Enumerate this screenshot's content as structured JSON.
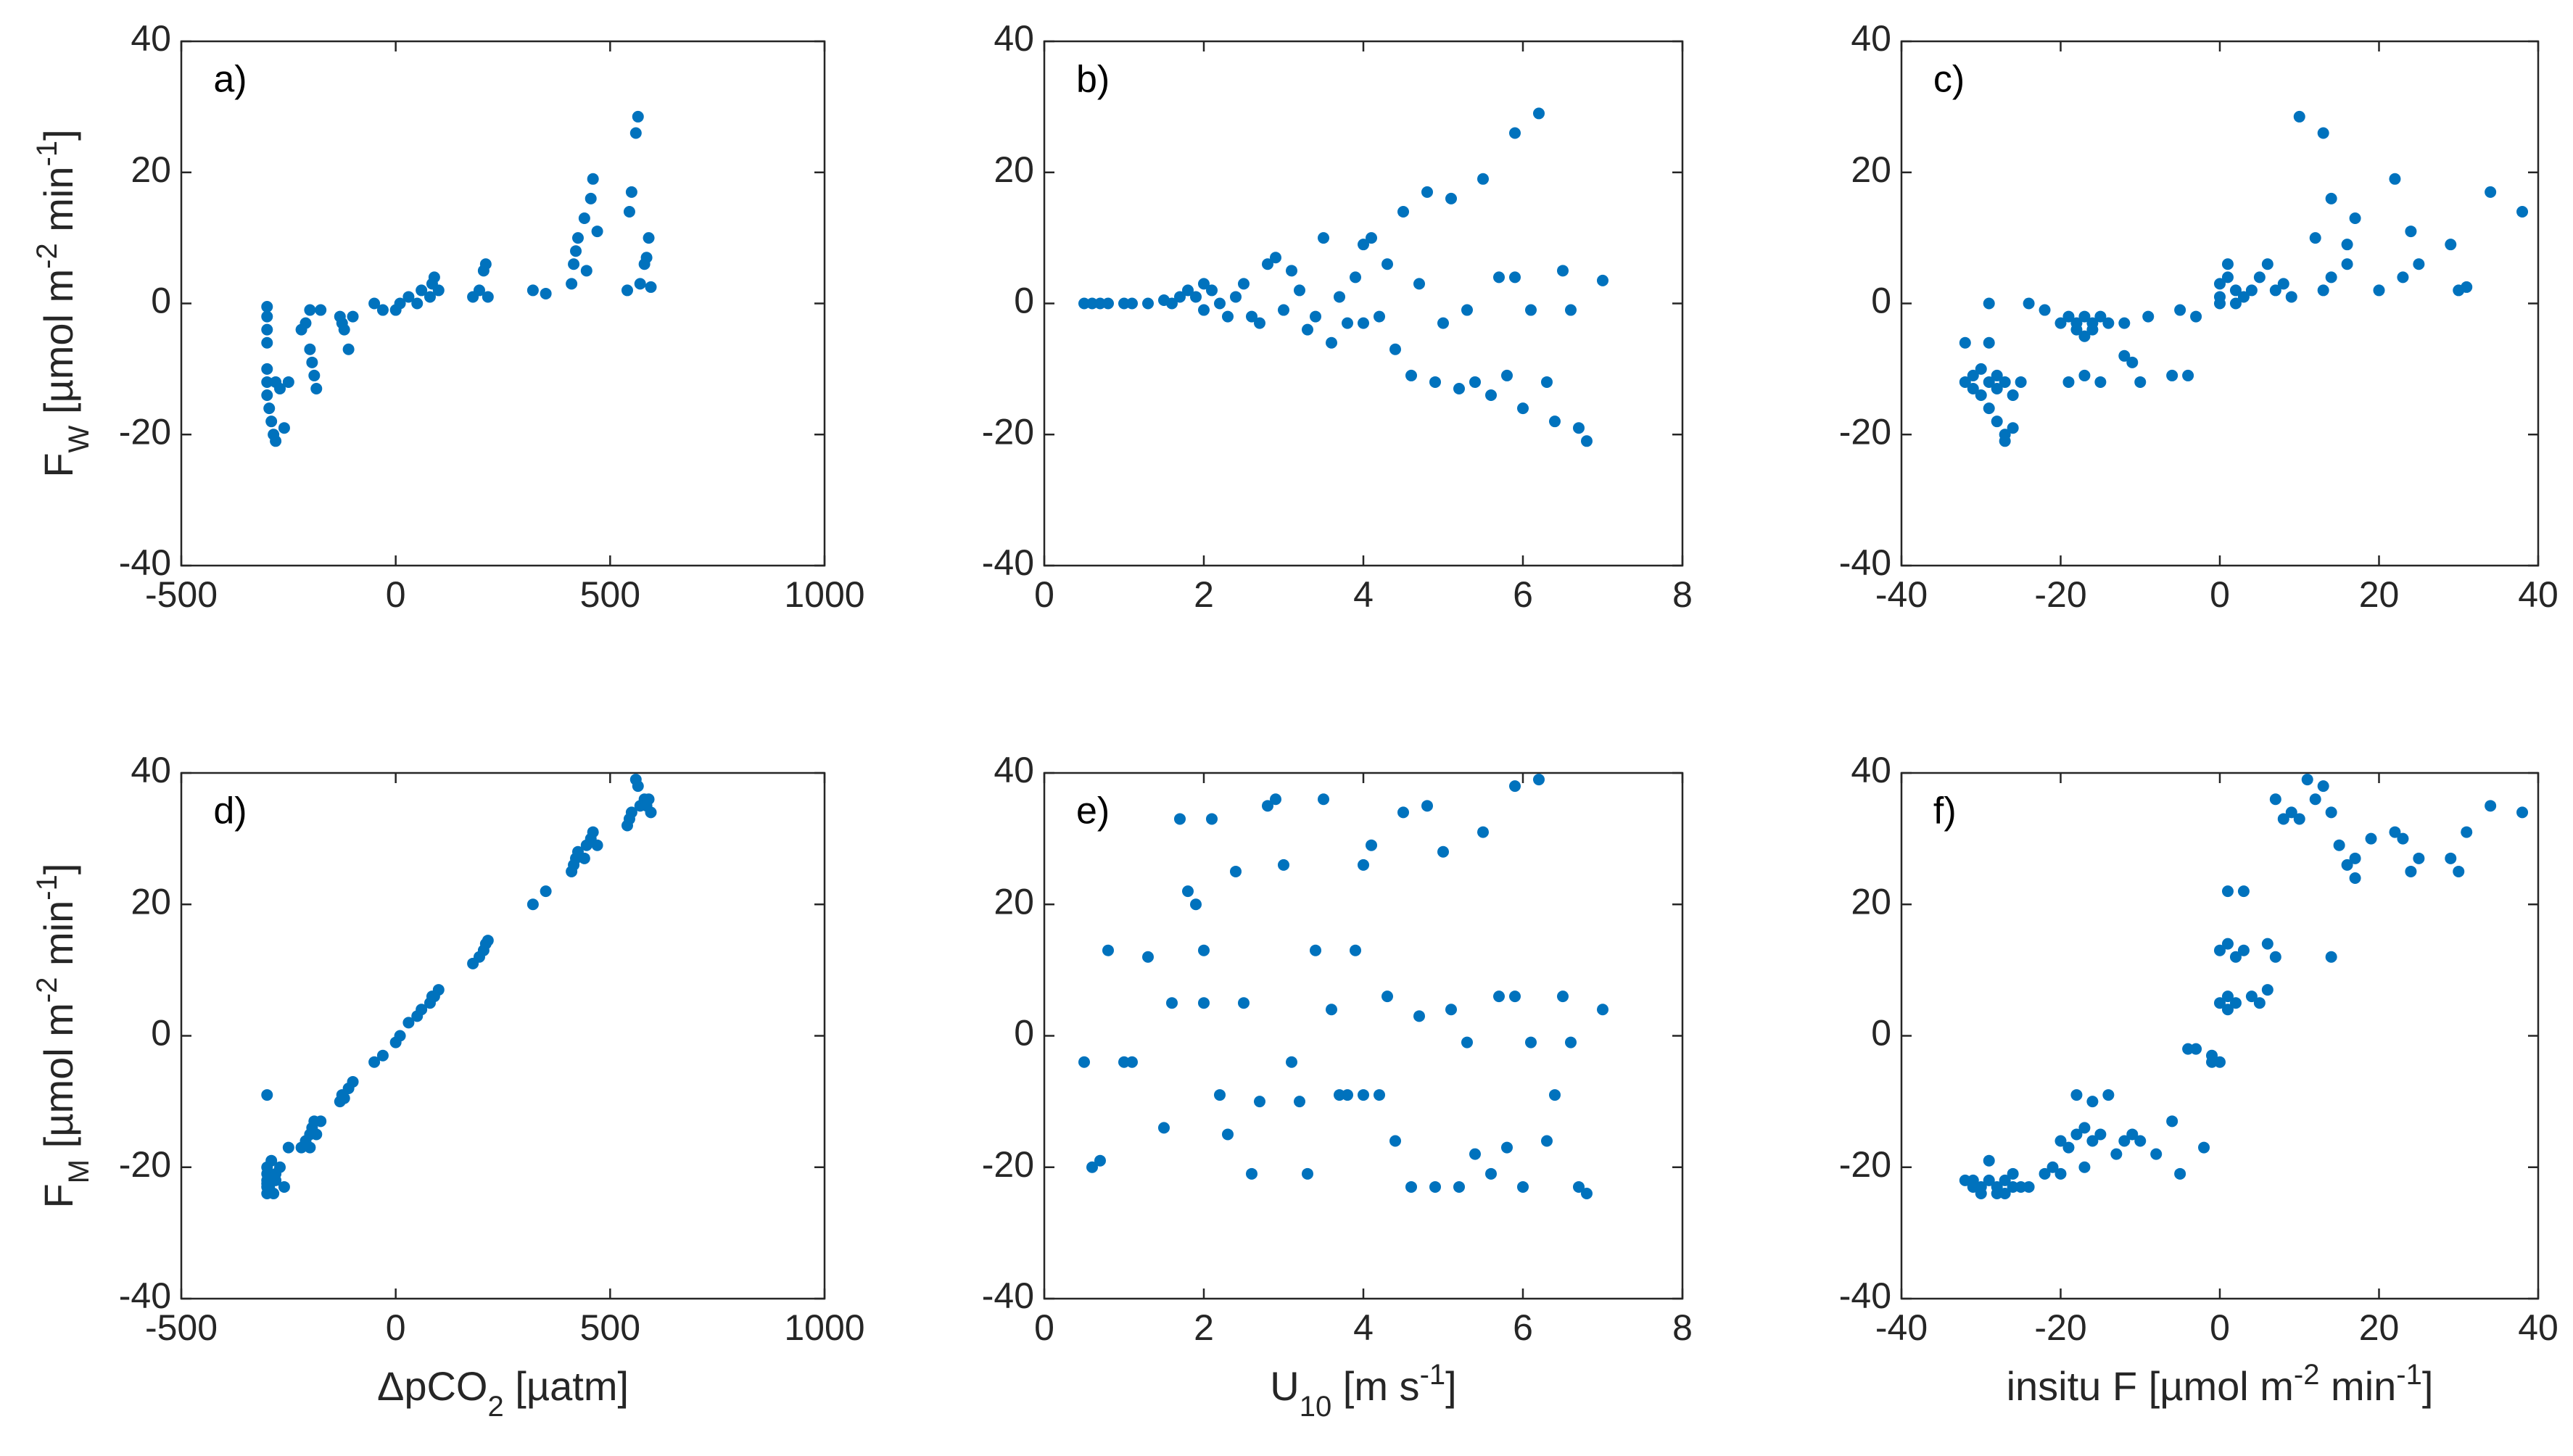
{
  "chart_data": [
    {
      "type": "scatter",
      "label": "a)",
      "color": "#0072bd",
      "ylabel": [
        {
          "text": "F"
        },
        {
          "text": "W",
          "shift": "sub"
        },
        {
          "text": " [µmol m"
        },
        {
          "text": "-2",
          "shift": "super"
        },
        {
          "text": " min"
        },
        {
          "text": "-1",
          "shift": "super"
        },
        {
          "text": "]"
        }
      ],
      "xlim": [
        -500,
        1000
      ],
      "xticks": [
        -500,
        0,
        500,
        1000
      ],
      "ylim": [
        -40,
        40
      ],
      "yticks": [
        -40,
        -20,
        0,
        20,
        40
      ],
      "x": [
        -300,
        -300,
        -300,
        -300,
        -300,
        -300,
        -300,
        -295,
        -290,
        -285,
        -280,
        -280,
        -270,
        -260,
        -250,
        -220,
        -210,
        -200,
        -200,
        -195,
        -190,
        -185,
        -175,
        -130,
        -125,
        -120,
        -110,
        -100,
        -50,
        -30,
        0,
        10,
        30,
        50,
        60,
        80,
        85,
        90,
        100,
        180,
        195,
        205,
        210,
        215,
        320,
        350,
        410,
        415,
        420,
        425,
        440,
        445,
        455,
        460,
        470,
        540,
        545,
        550,
        560,
        565,
        570,
        580,
        585,
        590,
        595
      ],
      "values": [
        -0.5,
        -2,
        -4,
        -6,
        -10,
        -12,
        -14,
        -16,
        -18,
        -20,
        -21,
        -12,
        -13,
        -19,
        -12,
        -4,
        -3,
        -1,
        -7,
        -9,
        -11,
        -13,
        -1,
        -2,
        -3,
        -4,
        -7,
        -2,
        0,
        -1,
        -1,
        0,
        1,
        0,
        2,
        1,
        3,
        4,
        2,
        1,
        2,
        5,
        6,
        1,
        2,
        1.5,
        3,
        6,
        8,
        10,
        13,
        5,
        16,
        19,
        11,
        2,
        14,
        17,
        26,
        28.5,
        3,
        6,
        7,
        10,
        2.5
      ]
    },
    {
      "type": "scatter",
      "label": "b)",
      "color": "#0072bd",
      "xlim": [
        0,
        8
      ],
      "xticks": [
        0,
        2,
        4,
        6,
        8
      ],
      "ylim": [
        -40,
        40
      ],
      "yticks": [
        -40,
        -20,
        0,
        20,
        40
      ],
      "x": [
        0.5,
        0.6,
        0.7,
        0.8,
        1.0,
        1.1,
        1.3,
        1.5,
        1.6,
        1.7,
        1.8,
        1.9,
        2.0,
        2.0,
        2.1,
        2.2,
        2.3,
        2.4,
        2.5,
        2.6,
        2.7,
        2.8,
        2.9,
        3.0,
        3.1,
        3.2,
        3.3,
        3.4,
        3.5,
        3.6,
        3.7,
        3.8,
        3.9,
        4.0,
        4.0,
        4.1,
        4.2,
        4.3,
        4.4,
        4.5,
        4.6,
        4.7,
        4.8,
        4.9,
        5.0,
        5.1,
        5.2,
        5.3,
        5.4,
        5.5,
        5.6,
        5.7,
        5.8,
        5.9,
        5.9,
        6.0,
        6.1,
        6.2,
        6.3,
        6.4,
        6.5,
        6.6,
        6.7,
        6.8,
        7.0
      ],
      "values": [
        0,
        0,
        0,
        0,
        0,
        0,
        0,
        0.5,
        0,
        1,
        2,
        1,
        -1,
        3,
        2,
        0,
        -2,
        1,
        3,
        -2,
        -3,
        6,
        7,
        -1,
        5,
        2,
        -4,
        -2,
        10,
        -6,
        1,
        -3,
        4,
        9,
        -3,
        10,
        -2,
        6,
        -7,
        14,
        -11,
        3,
        17,
        -12,
        -3,
        16,
        -13,
        -1,
        -12,
        19,
        -14,
        4,
        -11,
        4,
        26,
        -16,
        -1,
        29,
        -12,
        -18,
        5,
        -1,
        -19,
        -21,
        3.5
      ]
    },
    {
      "type": "scatter",
      "label": "c)",
      "color": "#0072bd",
      "xlim": [
        -40,
        40
      ],
      "xticks": [
        -40,
        -20,
        0,
        20,
        40
      ],
      "ylim": [
        -40,
        40
      ],
      "yticks": [
        -40,
        -20,
        0,
        20,
        40
      ],
      "x": [
        -32,
        -32,
        -31,
        -31,
        -30,
        -30,
        -29,
        -29,
        -28,
        -28,
        -28,
        -27,
        -27,
        -27,
        -26,
        -26,
        -25,
        -29,
        -29,
        -24,
        -22,
        -20,
        -19,
        -18,
        -18,
        -17,
        -17,
        -16,
        -16,
        -15,
        -14,
        -19,
        -17,
        -15,
        -12,
        -11,
        -10,
        -12,
        -9,
        -6,
        -4,
        -5,
        -3,
        0,
        0,
        0,
        1,
        1,
        2,
        2,
        3,
        4,
        5,
        6,
        7,
        8,
        9,
        10,
        12,
        13,
        13,
        14,
        14,
        16,
        16,
        17,
        20,
        22,
        23,
        24,
        25,
        29,
        30,
        31,
        34,
        38
      ],
      "values": [
        -6,
        -12,
        -11,
        -13,
        -14,
        -10,
        -12,
        -16,
        -11,
        -13,
        -18,
        -20,
        -21,
        -12,
        -14,
        -19,
        -12,
        0,
        -6,
        0,
        -1,
        -3,
        -2,
        -4,
        -3,
        -5,
        -2,
        -3,
        -4,
        -2,
        -3,
        -12,
        -11,
        -12,
        -8,
        -9,
        -12,
        -3,
        -2,
        -11,
        -11,
        -1,
        -2,
        0,
        1,
        3,
        4,
        6,
        0,
        2,
        1,
        2,
        4,
        6,
        2,
        3,
        1,
        28.5,
        10,
        26,
        2,
        4,
        16,
        6,
        9,
        13,
        2,
        19,
        4,
        11,
        6,
        9,
        2,
        2.5,
        17,
        14
      ]
    },
    {
      "type": "scatter",
      "label": "d)",
      "color": "#0072bd",
      "xlabel": [
        {
          "text": "ΔpCO"
        },
        {
          "text": "2",
          "shift": "sub"
        },
        {
          "text": " [µatm]"
        }
      ],
      "ylabel": [
        {
          "text": "F"
        },
        {
          "text": "M",
          "shift": "sub"
        },
        {
          "text": " [µmol m"
        },
        {
          "text": "-2",
          "shift": "super"
        },
        {
          "text": " min"
        },
        {
          "text": "-1",
          "shift": "super"
        },
        {
          "text": "]"
        }
      ],
      "xlim": [
        -500,
        1000
      ],
      "xticks": [
        -500,
        0,
        500,
        1000
      ],
      "ylim": [
        -40,
        40
      ],
      "yticks": [
        -40,
        -20,
        0,
        20,
        40
      ],
      "x": [
        -300,
        -300,
        -300,
        -300,
        -300,
        -300,
        -300,
        -295,
        -290,
        -285,
        -280,
        -280,
        -270,
        -260,
        -250,
        -220,
        -210,
        -200,
        -200,
        -195,
        -190,
        -185,
        -175,
        -130,
        -125,
        -120,
        -110,
        -100,
        -50,
        -30,
        0,
        10,
        30,
        50,
        60,
        80,
        85,
        90,
        100,
        180,
        195,
        205,
        210,
        215,
        320,
        350,
        410,
        415,
        420,
        425,
        440,
        445,
        455,
        460,
        470,
        540,
        545,
        550,
        560,
        565,
        570,
        580,
        585,
        590,
        595
      ],
      "values": [
        -9,
        -23,
        -22,
        -24,
        -21,
        -20,
        -22.5,
        -23,
        -19,
        -24,
        -22,
        -21,
        -20,
        -23,
        -17,
        -17,
        -16,
        -15,
        -17,
        -14,
        -13,
        -15,
        -13,
        -10,
        -9,
        -9.5,
        -8,
        -7,
        -4,
        -3,
        -1,
        0,
        2,
        3,
        4,
        5,
        6,
        6,
        7,
        11,
        12,
        13,
        14,
        14.5,
        20,
        22,
        25,
        26,
        27,
        28,
        27,
        29,
        30,
        31,
        29,
        32,
        33,
        34,
        39,
        38,
        35,
        36,
        35,
        36,
        34
      ]
    },
    {
      "type": "scatter",
      "label": "e)",
      "color": "#0072bd",
      "xlabel": [
        {
          "text": "U"
        },
        {
          "text": "10",
          "shift": "sub"
        },
        {
          "text": " [m s"
        },
        {
          "text": "-1",
          "shift": "super"
        },
        {
          "text": "]"
        }
      ],
      "xlim": [
        0,
        8
      ],
      "xticks": [
        0,
        2,
        4,
        6,
        8
      ],
      "ylim": [
        -40,
        40
      ],
      "yticks": [
        -40,
        -20,
        0,
        20,
        40
      ],
      "x": [
        0.5,
        0.6,
        0.7,
        0.8,
        1.0,
        1.1,
        1.3,
        1.5,
        1.6,
        1.7,
        1.8,
        1.9,
        2.0,
        2.0,
        2.1,
        2.2,
        2.3,
        2.4,
        2.5,
        2.6,
        2.7,
        2.8,
        2.9,
        3.0,
        3.1,
        3.2,
        3.3,
        3.4,
        3.5,
        3.6,
        3.7,
        3.8,
        3.9,
        4.0,
        4.0,
        4.1,
        4.2,
        4.3,
        4.4,
        4.5,
        4.6,
        4.7,
        4.8,
        4.9,
        5.0,
        5.1,
        5.2,
        5.3,
        5.4,
        5.5,
        5.6,
        5.7,
        5.8,
        5.9,
        5.9,
        6.0,
        6.1,
        6.2,
        6.3,
        6.4,
        6.5,
        6.6,
        6.7,
        6.8,
        7.0
      ],
      "values": [
        -4,
        -20,
        -19,
        13,
        -4,
        -4,
        12,
        -14,
        5,
        33,
        22,
        20,
        5,
        13,
        33,
        -9,
        -15,
        25,
        5,
        -21,
        -10,
        35,
        36,
        26,
        -4,
        -10,
        -21,
        13,
        36,
        4,
        -9,
        -9,
        13,
        26,
        -9,
        29,
        -9,
        6,
        -16,
        34,
        -23,
        3,
        35,
        -23,
        28,
        4,
        -23,
        -1,
        -18,
        31,
        -21,
        6,
        -17,
        6,
        38,
        -23,
        -1,
        39,
        -16,
        -9,
        6,
        -1,
        -23,
        -24,
        4
      ]
    },
    {
      "type": "scatter",
      "label": "f)",
      "color": "#0072bd",
      "xlabel": [
        {
          "text": "insitu F [µmol m"
        },
        {
          "text": "-2",
          "shift": "super"
        },
        {
          "text": " min"
        },
        {
          "text": "-1",
          "shift": "super"
        },
        {
          "text": "]"
        }
      ],
      "xlim": [
        -40,
        40
      ],
      "xticks": [
        -40,
        -20,
        0,
        20,
        40
      ],
      "ylim": [
        -40,
        40
      ],
      "yticks": [
        -40,
        -20,
        0,
        20,
        40
      ],
      "x": [
        -32,
        -31,
        -31,
        -30,
        -30,
        -29,
        -29,
        -28,
        -28,
        -27,
        -27,
        -26,
        -26,
        -25,
        -24,
        -22,
        -21,
        -20,
        -20,
        -19,
        -18,
        -18,
        -17,
        -17,
        -16,
        -16,
        -15,
        -14,
        -13,
        -12,
        -11,
        -10,
        -8,
        -6,
        -5,
        -4,
        -3,
        -2,
        -1,
        -1,
        0,
        0,
        0,
        1,
        1,
        1,
        1,
        2,
        2,
        3,
        3,
        4,
        5,
        6,
        6,
        7,
        7,
        8,
        9,
        10,
        11,
        12,
        13,
        14,
        14,
        15,
        16,
        17,
        17,
        19,
        22,
        23,
        24,
        25,
        29,
        30,
        31,
        34,
        38
      ],
      "values": [
        -22,
        -23,
        -22,
        -24,
        -23,
        -22,
        -19,
        -24,
        -23,
        -22,
        -24,
        -23,
        -21,
        -23,
        -23,
        -21,
        -20,
        -16,
        -21,
        -17,
        -9,
        -15,
        -14,
        -20,
        -10,
        -16,
        -15,
        -9,
        -18,
        -16,
        -15,
        -16,
        -18,
        -13,
        -21,
        -2,
        -2,
        -17,
        -4,
        -3,
        -4,
        5,
        13,
        4,
        6,
        14,
        22,
        5,
        12,
        13,
        22,
        6,
        5,
        14,
        7,
        12,
        36,
        33,
        34,
        33,
        39,
        36,
        38,
        12,
        34,
        29,
        26,
        27,
        24,
        30,
        31,
        30,
        25,
        27,
        27,
        25,
        31,
        35,
        34
      ]
    }
  ]
}
